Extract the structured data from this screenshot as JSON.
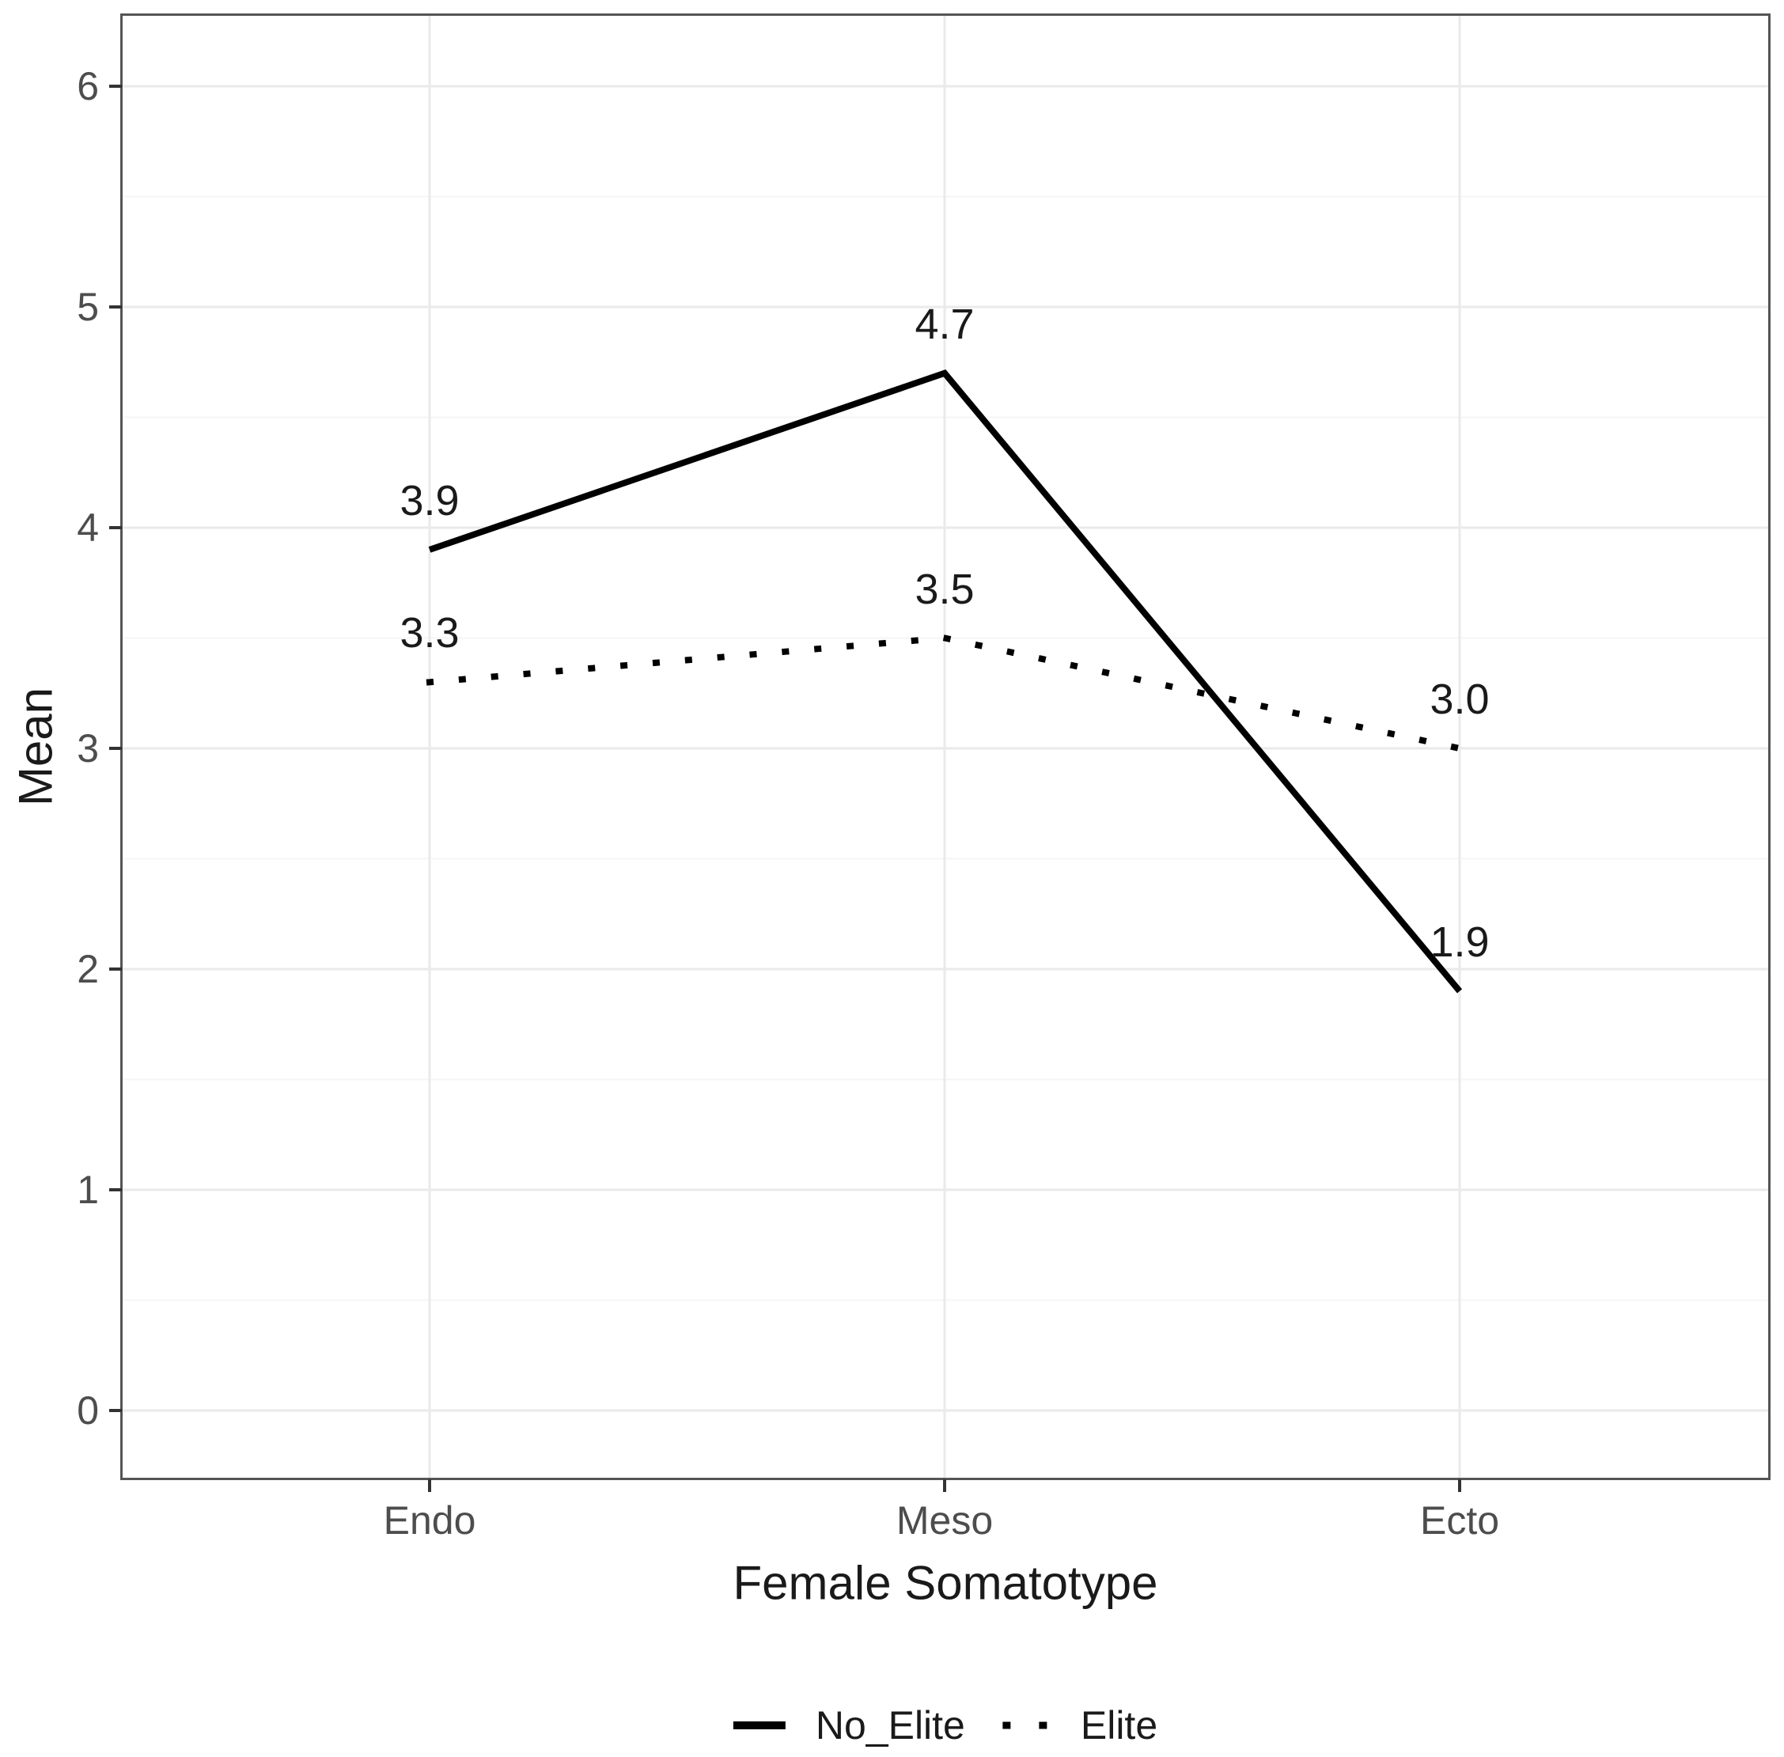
{
  "chart_data": {
    "type": "line",
    "title": "",
    "xlabel": "Female Somatotype",
    "ylabel": "Mean",
    "categories": [
      "Endo",
      "Meso",
      "Ecto"
    ],
    "series": [
      {
        "name": "No_Elite",
        "line_style": "solid",
        "color": "#000000",
        "values": [
          3.9,
          4.7,
          1.9
        ],
        "point_labels": [
          "3.9",
          "4.7",
          "1.9"
        ]
      },
      {
        "name": "Elite",
        "line_style": "dotted",
        "color": "#000000",
        "values": [
          3.3,
          3.5,
          3.0
        ],
        "point_labels": [
          "3.3",
          "3.5",
          "3.0"
        ]
      }
    ],
    "y_axis": {
      "ticks": [
        0,
        1,
        2,
        3,
        4,
        5,
        6
      ],
      "minor_ticks": [
        0.5,
        1.5,
        2.5,
        3.5,
        4.5,
        5.5
      ],
      "range": [
        0,
        6
      ]
    },
    "grid": {
      "horizontal_major": true,
      "horizontal_minor": true,
      "vertical_major": true
    },
    "legend_position": "bottom"
  },
  "colors": {
    "background": "#ffffff",
    "panel_border": "#555555",
    "grid_major": "#eaeaea",
    "grid_minor": "#f5f5f5",
    "tick_mark": "#333333",
    "tick_label": "#4d4d4d",
    "axis_title": "#1a1a1a",
    "data_label": "#1a1a1a",
    "series_line": "#000000"
  }
}
